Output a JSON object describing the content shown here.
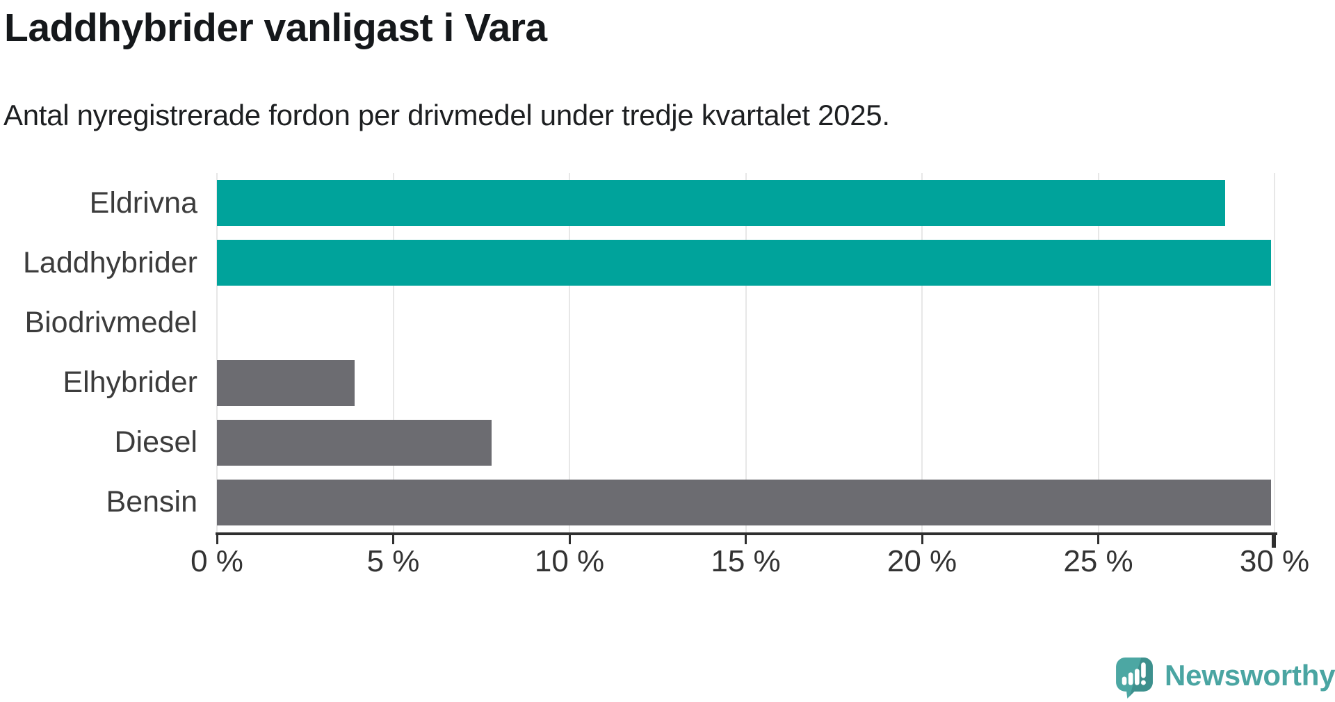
{
  "header": {
    "title": "Laddhybrider vanligast i Vara",
    "subtitle": "Antal nyregistrerade fordon per drivmedel under tredje kvartalet 2025."
  },
  "chart_data": {
    "type": "bar",
    "orientation": "horizontal",
    "title": "Laddhybrider vanligast i Vara",
    "subtitle": "Antal nyregistrerade fordon per drivmedel under tredje kvartalet 2025.",
    "categories": [
      "Eldrivna",
      "Laddhybrider",
      "Biodrivmedel",
      "Elhybrider",
      "Diesel",
      "Bensin"
    ],
    "values": [
      28.6,
      29.9,
      0,
      3.9,
      7.8,
      29.9
    ],
    "unit": "%",
    "xlim": [
      0,
      30
    ],
    "x_ticks": [
      0,
      5,
      10,
      15,
      20,
      25,
      30
    ],
    "x_tick_labels": [
      "0 %",
      "5 %",
      "10 %",
      "15 %",
      "20 %",
      "25 %",
      "30 %"
    ],
    "bar_colors": [
      "#00A39B",
      "#00A39B",
      "#6C6C71",
      "#6C6C71",
      "#6C6C71",
      "#6C6C71"
    ],
    "grid": true,
    "legend": null,
    "colors": {
      "highlight": "#00A39B",
      "default": "#6C6C71",
      "gridline": "#e7e7e7",
      "axis": "#2f2f2f"
    }
  },
  "branding": {
    "logo_text": "Newsworthy",
    "logo_color": "#4AA5A2",
    "logo_icon": "newsworthy-speech-bubble-chart-icon",
    "logo_icon_colors": {
      "bubble": "#4CA7A3",
      "fold": "#3D908D",
      "marks": "#ffffff"
    }
  }
}
